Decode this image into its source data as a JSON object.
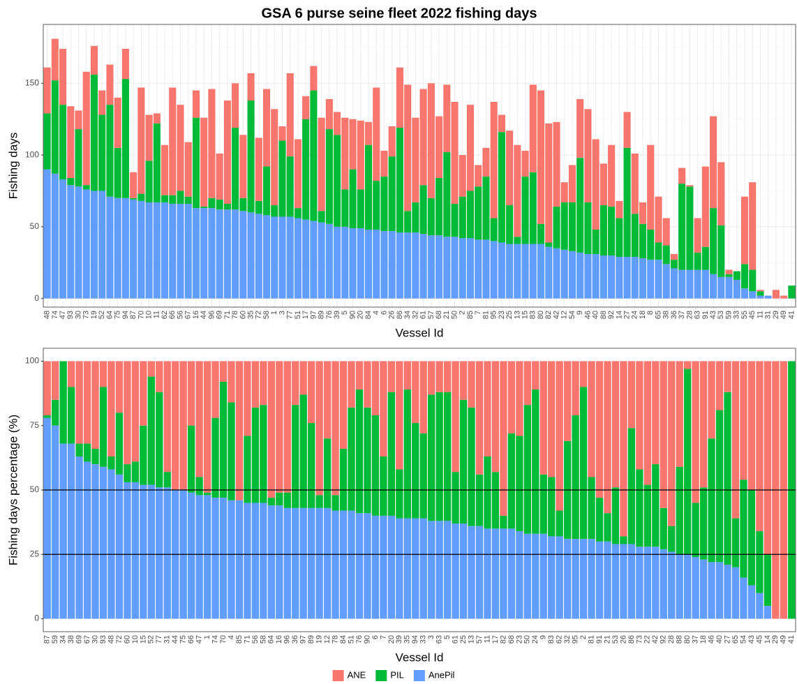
{
  "chart_data": [
    {
      "type": "bar",
      "stacked": true,
      "title": "GSA 6 purse seine fleet 2022 fishing days",
      "x_label": "Vessel Id",
      "y_label": "Fishing days",
      "categories": [
        "48",
        "74",
        "47",
        "93",
        "30",
        "73",
        "19",
        "52",
        "64",
        "75",
        "94",
        "87",
        "70",
        "10",
        "11",
        "62",
        "66",
        "56",
        "67",
        "16",
        "44",
        "96",
        "69",
        "71",
        "78",
        "60",
        "35",
        "72",
        "58",
        "1",
        "3",
        "77",
        "51",
        "17",
        "97",
        "89",
        "76",
        "39",
        "5",
        "90",
        "20",
        "84",
        "4",
        "6",
        "26",
        "86",
        "34",
        "32",
        "61",
        "57",
        "68",
        "21",
        "50",
        "2",
        "85",
        "7",
        "81",
        "95",
        "23",
        "25",
        "13",
        "15",
        "83",
        "80",
        "82",
        "42",
        "12",
        "54",
        "9",
        "46",
        "40",
        "88",
        "92",
        "14",
        "27",
        "24",
        "18",
        "8",
        "65",
        "38",
        "36",
        "37",
        "28",
        "63",
        "91",
        "43",
        "53",
        "59",
        "33",
        "55",
        "45",
        "11",
        "31",
        "29",
        "49",
        "41"
      ],
      "series": [
        {
          "color": "#F8766D",
          "values": [
            32,
            29,
            39,
            50,
            13,
            79,
            20,
            17,
            28,
            35,
            21,
            18,
            74,
            32,
            7,
            35,
            75,
            60,
            38,
            19,
            62,
            76,
            32,
            72,
            31,
            44,
            19,
            44,
            54,
            67,
            10,
            58,
            48,
            16,
            17,
            65,
            21,
            16,
            50,
            35,
            48,
            16,
            65,
            18,
            21,
            42,
            88,
            59,
            67,
            80,
            43,
            47,
            71,
            29,
            60,
            15,
            20,
            81,
            12,
            52,
            64,
            18,
            61,
            93,
            83,
            59,
            14,
            26,
            41,
            65,
            63,
            29,
            43,
            12,
            25,
            42,
            15,
            59,
            32,
            19,
            4,
            11,
            1,
            24,
            56,
            64,
            44,
            3,
            0,
            47,
            61,
            1,
            0,
            6,
            2,
            0
          ]
        },
        {
          "color": "#00BA38",
          "values": [
            39,
            65,
            52,
            5,
            40,
            3,
            81,
            53,
            64,
            35,
            83,
            1,
            5,
            29,
            55,
            5,
            6,
            9,
            5,
            63,
            1,
            7,
            7,
            4,
            57,
            9,
            78,
            9,
            34,
            8,
            53,
            42,
            7,
            70,
            91,
            8,
            66,
            64,
            26,
            41,
            27,
            59,
            34,
            38,
            52,
            73,
            15,
            21,
            34,
            26,
            40,
            59,
            23,
            29,
            33,
            37,
            44,
            16,
            77,
            27,
            5,
            47,
            50,
            14,
            3,
            29,
            33,
            34,
            66,
            36,
            17,
            35,
            34,
            27,
            76,
            30,
            24,
            21,
            12,
            13,
            6,
            60,
            58,
            12,
            16,
            46,
            36,
            2,
            6,
            17,
            15,
            3,
            0,
            0,
            0,
            9
          ]
        },
        {
          "color": "#619CFF",
          "values": [
            90,
            87,
            83,
            79,
            78,
            76,
            75,
            75,
            71,
            70,
            70,
            69,
            68,
            67,
            67,
            67,
            66,
            66,
            66,
            63,
            63,
            63,
            62,
            62,
            62,
            61,
            60,
            59,
            58,
            57,
            57,
            57,
            56,
            55,
            54,
            53,
            52,
            50,
            50,
            49,
            49,
            48,
            48,
            47,
            47,
            46,
            46,
            46,
            45,
            44,
            44,
            43,
            43,
            42,
            42,
            41,
            41,
            40,
            39,
            38,
            38,
            38,
            38,
            38,
            36,
            35,
            34,
            33,
            32,
            31,
            31,
            30,
            30,
            29,
            29,
            29,
            28,
            27,
            27,
            24,
            21,
            20,
            20,
            20,
            20,
            17,
            15,
            15,
            13,
            7,
            5,
            2,
            2,
            0,
            0,
            0
          ]
        }
      ],
      "ylim": [
        -6,
        191
      ],
      "yticks": [
        0,
        50,
        100,
        150
      ],
      "y_minor_ticks": [
        25,
        75,
        125,
        175
      ],
      "grid": true
    },
    {
      "type": "bar",
      "stacked": true,
      "x_label": "Vessel Id",
      "y_label": "Fishing days percentage (%)",
      "categories": [
        "87",
        "59",
        "34",
        "38",
        "69",
        "67",
        "30",
        "93",
        "48",
        "72",
        "60",
        "10",
        "15",
        "52",
        "77",
        "31",
        "44",
        "75",
        "66",
        "47",
        "1",
        "74",
        "70",
        "4",
        "85",
        "71",
        "56",
        "58",
        "64",
        "16",
        "96",
        "36",
        "97",
        "89",
        "19",
        "12",
        "78",
        "84",
        "51",
        "76",
        "90",
        "6",
        "7",
        "20",
        "39",
        "35",
        "94",
        "33",
        "3",
        "63",
        "5",
        "61",
        "25",
        "13",
        "57",
        "11",
        "17",
        "82",
        "68",
        "23",
        "50",
        "24",
        "9",
        "83",
        "62",
        "32",
        "95",
        "2",
        "81",
        "91",
        "21",
        "53",
        "26",
        "86",
        "73",
        "22",
        "42",
        "92",
        "28",
        "88",
        "80",
        "37",
        "18",
        "46",
        "40",
        "27",
        "65",
        "54",
        "43",
        "45",
        "14",
        "29",
        "49",
        "41"
      ],
      "series": [
        {
          "name": "ANE",
          "color": "#F8766D",
          "values": [
            21,
            15,
            0,
            10,
            32,
            32,
            34,
            10,
            37,
            20,
            40,
            39,
            25,
            6,
            12,
            43,
            50,
            50,
            25,
            45,
            51,
            22,
            8,
            16,
            54,
            29,
            18,
            17,
            53,
            51,
            51,
            17,
            13,
            24,
            52,
            30,
            52,
            34,
            18,
            11,
            18,
            21,
            37,
            12,
            42,
            11,
            24,
            28,
            13,
            12,
            12,
            43,
            15,
            18,
            44,
            37,
            43,
            60,
            28,
            29,
            17,
            11,
            44,
            45,
            58,
            31,
            21,
            10,
            45,
            53,
            59,
            49,
            68,
            26,
            42,
            48,
            40,
            57,
            64,
            41,
            3,
            55,
            49,
            30,
            19,
            12,
            61,
            46,
            50,
            66,
            75,
            100,
            100,
            0
          ]
        },
        {
          "name": "PIL",
          "color": "#00BA38",
          "values": [
            1,
            10,
            32,
            22,
            5,
            7,
            6,
            31,
            5,
            24,
            7,
            8,
            23,
            42,
            37,
            6,
            0,
            0,
            26,
            7,
            1,
            31,
            45,
            38,
            0,
            26,
            37,
            38,
            3,
            5,
            6,
            40,
            44,
            33,
            5,
            27,
            6,
            24,
            40,
            48,
            41,
            39,
            23,
            48,
            19,
            50,
            37,
            33,
            49,
            50,
            50,
            20,
            48,
            46,
            20,
            28,
            22,
            5,
            37,
            37,
            50,
            56,
            23,
            23,
            10,
            38,
            48,
            59,
            24,
            17,
            11,
            22,
            3,
            45,
            30,
            24,
            32,
            16,
            10,
            34,
            72,
            21,
            28,
            48,
            59,
            67,
            19,
            38,
            37,
            24,
            20,
            0,
            0,
            100
          ]
        },
        {
          "name": "AnePil",
          "color": "#619CFF",
          "values": [
            78,
            75,
            68,
            68,
            63,
            61,
            60,
            59,
            58,
            56,
            53,
            53,
            52,
            52,
            51,
            51,
            50,
            50,
            49,
            48,
            48,
            47,
            47,
            46,
            46,
            45,
            45,
            45,
            44,
            44,
            43,
            43,
            43,
            43,
            43,
            43,
            42,
            42,
            42,
            41,
            41,
            40,
            40,
            40,
            39,
            39,
            39,
            39,
            38,
            38,
            38,
            37,
            37,
            36,
            36,
            35,
            35,
            35,
            35,
            34,
            33,
            33,
            33,
            32,
            32,
            31,
            31,
            31,
            31,
            30,
            30,
            29,
            29,
            29,
            28,
            28,
            28,
            27,
            26,
            25,
            25,
            24,
            23,
            22,
            22,
            21,
            20,
            16,
            13,
            10,
            5,
            0,
            0,
            0
          ]
        }
      ],
      "ylim": [
        -5,
        105
      ],
      "yticks": [
        0,
        25,
        50,
        75,
        100
      ],
      "hlines": [
        50,
        25
      ],
      "grid": false,
      "legend": "bottom"
    }
  ]
}
